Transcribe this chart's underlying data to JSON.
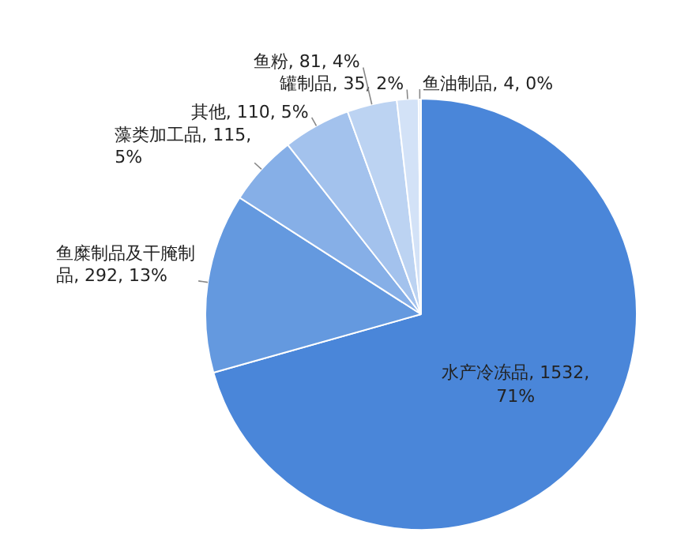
{
  "chart_data": {
    "type": "pie",
    "categories": [
      "水产冷冻品",
      "鱼糜制品及干腌制品",
      "藻类加工品",
      "其他",
      "鱼粉",
      "罐制品",
      "鱼油制品"
    ],
    "values": [
      1532,
      292,
      115,
      110,
      81,
      35,
      4
    ],
    "value_labels": [
      "1532, 71%",
      "292, 13%",
      "115, 5%",
      "110, 5%",
      "81, 4%",
      "35, 2%",
      "4, 0%"
    ],
    "colors": [
      "#4a86d9",
      "#6499df",
      "#86afe7",
      "#a3c2ed",
      "#bcd3f2",
      "#d3e2f7",
      "#e8effa"
    ],
    "legend": false
  }
}
